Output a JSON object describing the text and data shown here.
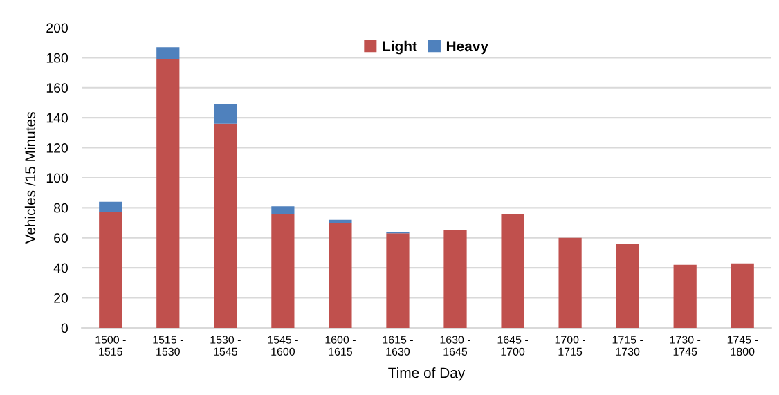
{
  "chart_data": {
    "type": "bar",
    "stacked": true,
    "categories": [
      "1500 -\n1515",
      "1515 -\n1530",
      "1530 -\n1545",
      "1545 -\n1600",
      "1600 -\n1615",
      "1615 -\n1630",
      "1630 -\n1645",
      "1645 -\n1700",
      "1700 -\n1715",
      "1715 -\n1730",
      "1730 -\n1745",
      "1745 -\n1800"
    ],
    "series": [
      {
        "name": "Light",
        "color": "#c0504d",
        "values": [
          77,
          179,
          136,
          76,
          70,
          63,
          65,
          76,
          60,
          56,
          42,
          43
        ]
      },
      {
        "name": "Heavy",
        "color": "#4f81bd",
        "values": [
          7,
          8,
          13,
          5,
          2,
          1,
          0,
          0,
          0,
          0,
          0,
          0
        ]
      }
    ],
    "xlabel": "Time of Day",
    "ylabel": "Vehicles /15 Minutes",
    "ylim": [
      0,
      200
    ],
    "yticks": [
      0,
      20,
      40,
      60,
      80,
      100,
      120,
      140,
      160,
      180,
      200
    ],
    "grid": "y",
    "legend": "top"
  }
}
